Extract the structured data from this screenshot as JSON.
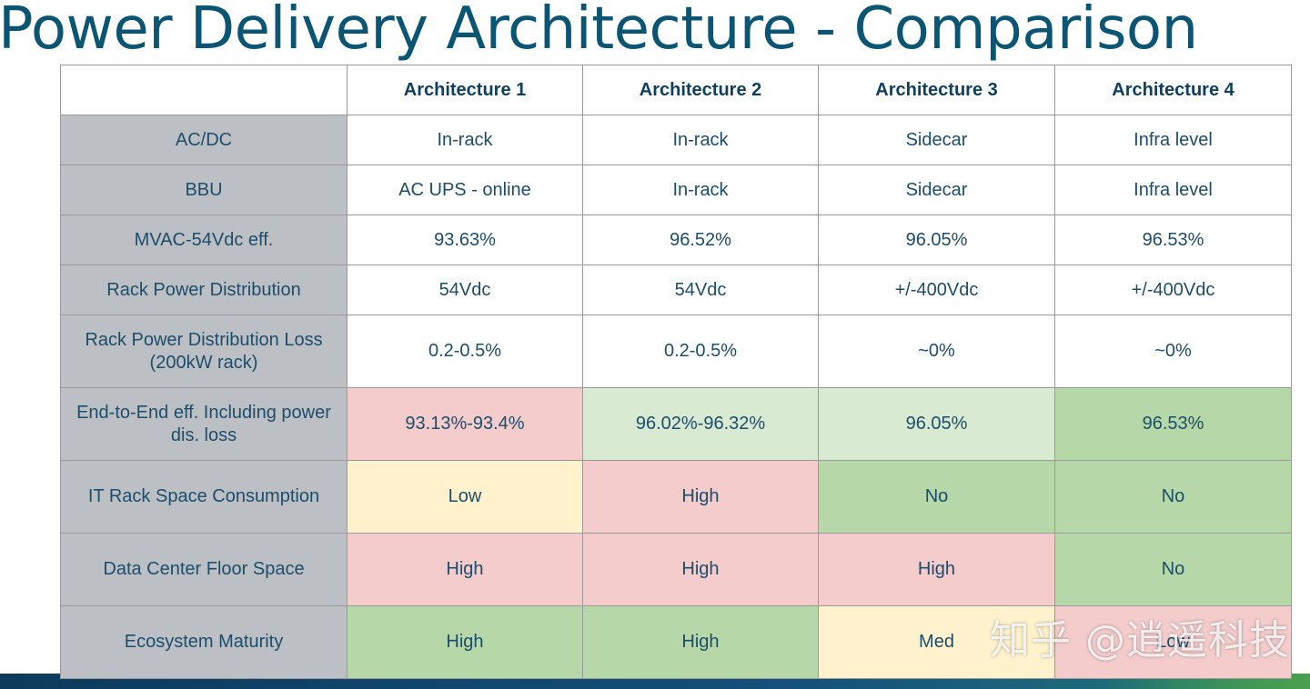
{
  "title": "Power Delivery Architecture - Comparison",
  "colors": {
    "title": "#0b5574",
    "red": "#f4cccc",
    "light_green": "#d9ead3",
    "green": "#b6d7a8",
    "yellow": "#fff2cc",
    "label_gray": "#bcc0c5"
  },
  "table": {
    "headers": [
      "",
      "Architecture 1",
      "Architecture 2",
      "Architecture 3",
      "Architecture 4"
    ],
    "rows": [
      {
        "label": "AC/DC",
        "cells": [
          "In-rack",
          "In-rack",
          "Sidecar",
          "Infra level"
        ]
      },
      {
        "label": "BBU",
        "cells": [
          "AC UPS - online",
          "In-rack",
          "Sidecar",
          "Infra level"
        ]
      },
      {
        "label": "MVAC-54Vdc eff.",
        "cells": [
          "93.63%",
          "96.52%",
          "96.05%",
          "96.53%"
        ]
      },
      {
        "label": "Rack Power Distribution",
        "cells": [
          "54Vdc",
          "54Vdc",
          "+/-400Vdc",
          "+/-400Vdc"
        ]
      },
      {
        "label": "Rack Power Distribution Loss (200kW rack)",
        "cells": [
          "0.2-0.5%",
          "0.2-0.5%",
          "~0%",
          "~0%"
        ]
      },
      {
        "label": "End-to-End eff. Including power dis. loss",
        "cells": [
          "93.13%-93.4%",
          "96.02%-96.32%",
          "96.05%",
          "96.53%"
        ]
      },
      {
        "label": "IT Rack Space Consumption",
        "cells": [
          "Low",
          "High",
          "No",
          "No"
        ]
      },
      {
        "label": "Data Center Floor Space",
        "cells": [
          "High",
          "High",
          "High",
          "No"
        ]
      },
      {
        "label": "Ecosystem Maturity",
        "cells": [
          "High",
          "High",
          "Med",
          "Low"
        ]
      }
    ]
  },
  "watermark": "知乎 @逍遥科技"
}
